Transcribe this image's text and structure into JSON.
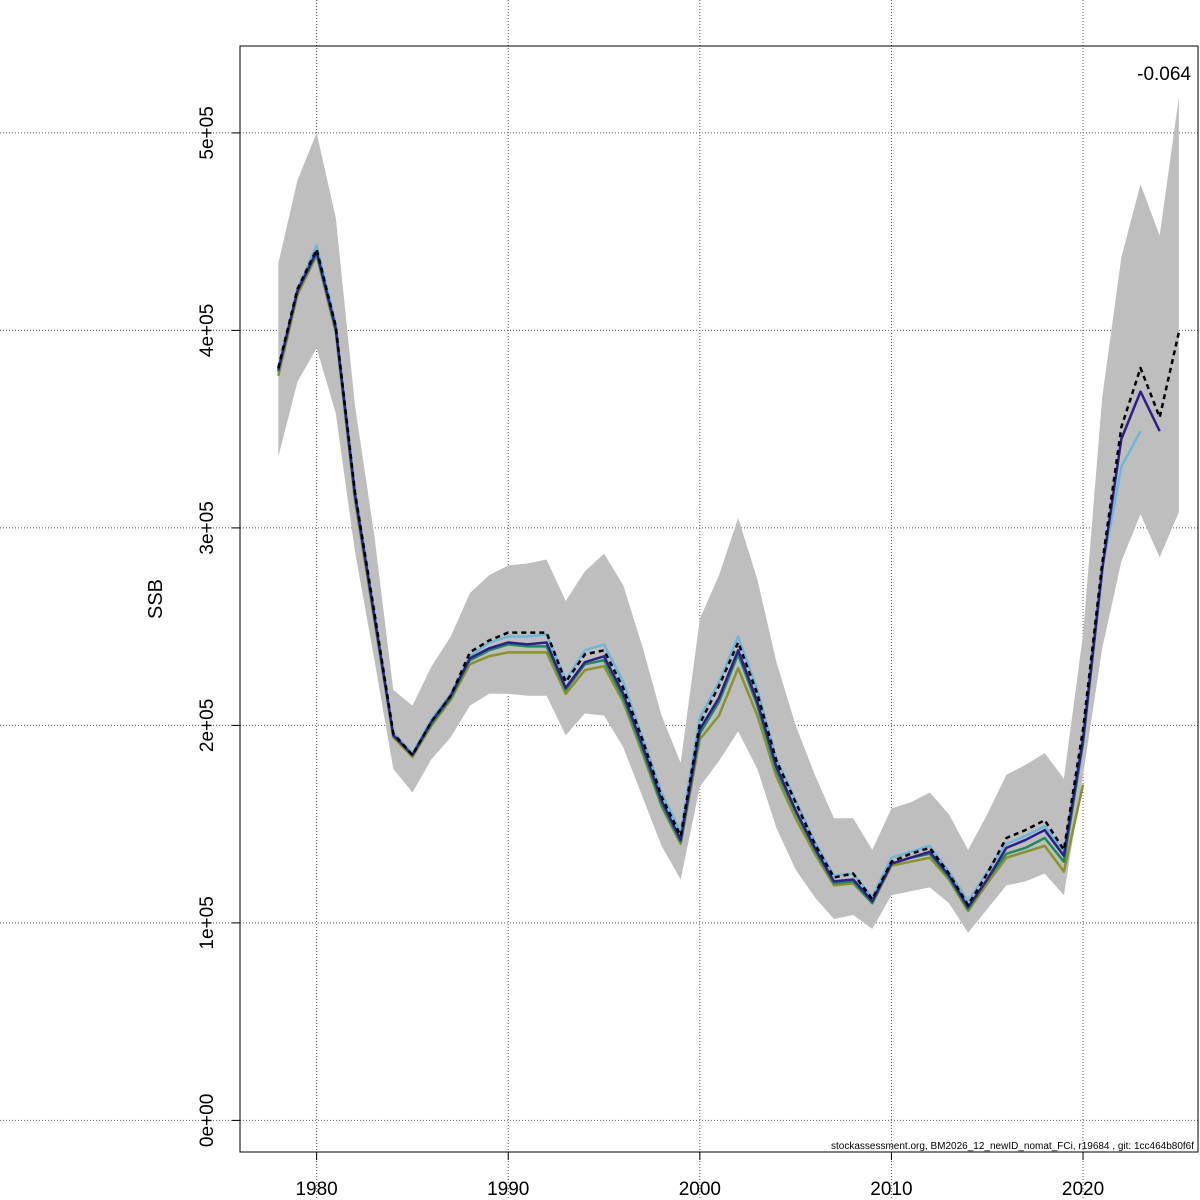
{
  "chart_data": {
    "type": "line",
    "ylabel": "SSB",
    "xlim": [
      1976,
      2026
    ],
    "ylim": [
      -16000,
      544000
    ],
    "xticks": [
      1980,
      1990,
      2000,
      2010,
      2020
    ],
    "yticks": [
      {
        "value": 0,
        "label": "0e+00"
      },
      {
        "value": 100000,
        "label": "1e+05"
      },
      {
        "value": 200000,
        "label": "2e+05"
      },
      {
        "value": 300000,
        "label": "3e+05"
      },
      {
        "value": 400000,
        "label": "4e+05"
      },
      {
        "value": 500000,
        "label": "5e+05"
      }
    ],
    "grid": true,
    "annotation": "-0.064",
    "footer": "stockassessment.org, BM2026_12_newID_nomat_FCi, r19684 , git: 1cc464b80f6f",
    "confidence_band": {
      "color": "#bebebe",
      "x": [
        1978,
        1979,
        1980,
        1981,
        1982,
        1983,
        1984,
        1985,
        1986,
        1987,
        1988,
        1989,
        1990,
        1991,
        1992,
        1993,
        1994,
        1995,
        1996,
        1997,
        1998,
        1999,
        2000,
        2001,
        2002,
        2003,
        2004,
        2005,
        2006,
        2007,
        2008,
        2009,
        2010,
        2011,
        2012,
        2013,
        2014,
        2015,
        2016,
        2017,
        2018,
        2019,
        2020,
        2021,
        2022,
        2023,
        2024,
        2025
      ],
      "upper": [
        434000,
        476000,
        500000,
        457000,
        362000,
        297000,
        218000,
        210000,
        230000,
        245000,
        267000,
        276000,
        281000,
        282000,
        284000,
        263000,
        278000,
        287000,
        271000,
        240000,
        205000,
        181000,
        254000,
        276000,
        305000,
        274000,
        232000,
        200000,
        175000,
        153000,
        153000,
        137000,
        158000,
        161000,
        166000,
        155000,
        137000,
        155000,
        175000,
        180000,
        186000,
        173000,
        246000,
        366000,
        437000,
        474000,
        448000,
        518000
      ],
      "lower": [
        336000,
        374000,
        391000,
        358000,
        288000,
        234000,
        178000,
        166000,
        183000,
        194000,
        210000,
        216000,
        216000,
        215000,
        215000,
        195000,
        206000,
        205000,
        189000,
        164000,
        139000,
        122000,
        169000,
        182000,
        197000,
        178000,
        148000,
        127000,
        113000,
        102000,
        104000,
        97000,
        114000,
        116000,
        118000,
        110000,
        95000,
        107000,
        119000,
        121000,
        125000,
        114000,
        175000,
        239000,
        283000,
        307000,
        285000,
        308000
      ]
    },
    "series": [
      {
        "color": "#000000",
        "dashed": true,
        "x": [
          1978,
          1979,
          1980,
          1981,
          1982,
          1983,
          1984,
          1985,
          1986,
          1987,
          1988,
          1989,
          1990,
          1991,
          1992,
          1993,
          1994,
          1995,
          1996,
          1997,
          1998,
          1999,
          2000,
          2001,
          2002,
          2003,
          2004,
          2005,
          2006,
          2007,
          2008,
          2009,
          2010,
          2011,
          2012,
          2013,
          2014,
          2015,
          2016,
          2017,
          2018,
          2019,
          2020,
          2021,
          2022,
          2023,
          2024,
          2025
        ],
        "values": [
          381000,
          421000,
          441000,
          402000,
          318000,
          258000,
          196000,
          185000,
          202000,
          215000,
          237000,
          243000,
          247000,
          247000,
          247000,
          222000,
          236000,
          238000,
          219000,
          193000,
          164000,
          144000,
          201000,
          220000,
          242000,
          216000,
          182000,
          161000,
          140000,
          123000,
          125000,
          112000,
          131000,
          135000,
          138000,
          125000,
          109000,
          125000,
          143000,
          147000,
          152000,
          137000,
          198000,
          282000,
          351000,
          381000,
          356000,
          399000
        ]
      },
      {
        "color": "#2d1e8c",
        "dashed": false,
        "x": [
          1978,
          1979,
          1980,
          1981,
          1982,
          1983,
          1984,
          1985,
          1986,
          1987,
          1988,
          1989,
          1990,
          1991,
          1992,
          1993,
          1994,
          1995,
          1996,
          1997,
          1998,
          1999,
          2000,
          2001,
          2002,
          2003,
          2004,
          2005,
          2006,
          2007,
          2008,
          2009,
          2010,
          2011,
          2012,
          2013,
          2014,
          2015,
          2016,
          2017,
          2018,
          2019,
          2020,
          2021,
          2022,
          2023,
          2024
        ],
        "values": [
          380000,
          420000,
          440000,
          401000,
          317000,
          256000,
          195000,
          185000,
          202000,
          215000,
          234000,
          239000,
          242000,
          241000,
          242000,
          219000,
          232000,
          235000,
          216000,
          190000,
          162000,
          142000,
          198000,
          214000,
          238000,
          212000,
          179000,
          157000,
          138000,
          121000,
          122000,
          111000,
          130000,
          133000,
          136000,
          124000,
          108000,
          122000,
          138000,
          142000,
          147000,
          134000,
          193000,
          279000,
          345000,
          369000,
          349000
        ]
      },
      {
        "color": "#6fb6d8",
        "dashed": false,
        "x": [
          1978,
          1979,
          1980,
          1981,
          1982,
          1983,
          1984,
          1985,
          1986,
          1987,
          1988,
          1989,
          1990,
          1991,
          1992,
          1993,
          1994,
          1995,
          1996,
          1997,
          1998,
          1999,
          2000,
          2001,
          2002,
          2003,
          2004,
          2005,
          2006,
          2007,
          2008,
          2009,
          2010,
          2011,
          2012,
          2013,
          2014,
          2015,
          2016,
          2017,
          2018,
          2019,
          2020,
          2021,
          2022,
          2023
        ],
        "values": [
          380000,
          421000,
          443000,
          403000,
          319000,
          258000,
          196000,
          186000,
          203000,
          216000,
          235000,
          242000,
          245000,
          245000,
          246000,
          223000,
          238000,
          241000,
          222000,
          194000,
          166000,
          146000,
          204000,
          222000,
          245000,
          218000,
          183000,
          162000,
          141000,
          124000,
          125000,
          113000,
          133000,
          136000,
          139000,
          126000,
          111000,
          126000,
          140000,
          144000,
          149000,
          136000,
          195000,
          279000,
          331000,
          349000
        ]
      },
      {
        "color": "#1f8a5c",
        "dashed": false,
        "x": [
          1978,
          1979,
          1980,
          1981,
          1982,
          1983,
          1984,
          1985,
          1986,
          1987,
          1988,
          1989,
          1990,
          1991,
          1992,
          1993,
          1994,
          1995,
          1996,
          1997,
          1998,
          1999,
          2000,
          2001,
          2002,
          2003,
          2004,
          2005,
          2006,
          2007,
          2008,
          2009,
          2010,
          2011,
          2012,
          2013,
          2014,
          2015,
          2016,
          2017,
          2018,
          2019,
          2020,
          2021
        ],
        "values": [
          379000,
          420000,
          439000,
          400000,
          316000,
          256000,
          195000,
          185000,
          201000,
          214000,
          233000,
          238000,
          241000,
          240000,
          240000,
          218000,
          231000,
          233000,
          214000,
          188000,
          160000,
          141000,
          196000,
          212000,
          236000,
          210000,
          177000,
          156000,
          137000,
          120000,
          121000,
          110000,
          130000,
          133000,
          135000,
          123000,
          107000,
          122000,
          135000,
          138000,
          143000,
          131000,
          191000,
          278000
        ]
      },
      {
        "color": "#8c922a",
        "dashed": false,
        "x": [
          1978,
          1979,
          1980,
          1981,
          1982,
          1983,
          1984,
          1985,
          1986,
          1987,
          1988,
          1989,
          1990,
          1991,
          1992,
          1993,
          1994,
          1995,
          1996,
          1997,
          1998,
          1999,
          2000,
          2001,
          2002,
          2003,
          2004,
          2005,
          2006,
          2007,
          2008,
          2009,
          2010,
          2011,
          2012,
          2013,
          2014,
          2015,
          2016,
          2017,
          2018,
          2019,
          2020
        ],
        "values": [
          377000,
          418000,
          438000,
          399000,
          314000,
          254000,
          194000,
          184000,
          200000,
          213000,
          231000,
          235000,
          237000,
          237000,
          237000,
          216000,
          228000,
          230000,
          212000,
          186000,
          159000,
          140000,
          193000,
          205000,
          229000,
          205000,
          174000,
          153000,
          135000,
          119000,
          120000,
          110000,
          129000,
          131000,
          133000,
          122000,
          106000,
          120000,
          133000,
          136000,
          139000,
          126000,
          170000
        ]
      }
    ]
  }
}
